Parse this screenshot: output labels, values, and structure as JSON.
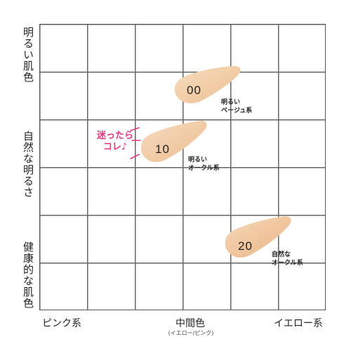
{
  "axes": {
    "y_top": "明るい肌色",
    "y_middle": "自然な明るさ",
    "y_bottom": "健康的な肌色",
    "x_left": "ピンク系",
    "x_middle": "中間色",
    "x_middle_sub": "(イエロー/ピンク)",
    "x_right": "イエロー系"
  },
  "swatches": [
    {
      "code": "00",
      "desc_line1": "明るい",
      "desc_line2": "ベージュ系",
      "color": "#f1cba4"
    },
    {
      "code": "10",
      "desc_line1": "明るい",
      "desc_line2": "オークル系",
      "color": "#f0c9a3"
    },
    {
      "code": "20",
      "desc_line1": "自然な",
      "desc_line2": "オークル系",
      "color": "#efc39a"
    }
  ],
  "callout": {
    "line1": "迷ったら",
    "line2": "コレ♪",
    "color": "#e0387f"
  }
}
